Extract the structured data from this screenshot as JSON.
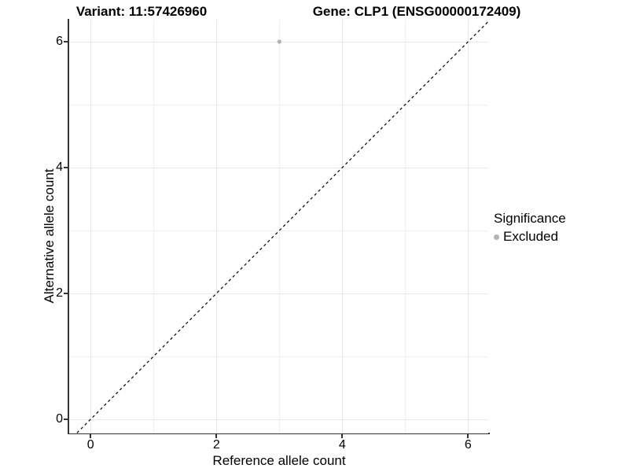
{
  "titles": {
    "variant": "Variant: 11:57426960",
    "gene": "Gene: CLP1 (ENSG00000172409)"
  },
  "chart_data": {
    "type": "scatter",
    "xlabel": "Reference allele count",
    "ylabel": "Alternative allele count",
    "xlim": [
      -0.34,
      6.32
    ],
    "ylim": [
      -0.225,
      6.35
    ],
    "x_ticks": [
      0,
      2,
      4,
      6
    ],
    "y_ticks": [
      0,
      2,
      4,
      6
    ],
    "x_minor_ticks": [
      1,
      3,
      5
    ],
    "y_minor_ticks": [
      1,
      3,
      5
    ],
    "grid": true,
    "points": [
      {
        "x": 3,
        "y": 6,
        "series": "Excluded",
        "color": "#b3b3b3"
      }
    ],
    "reference_line": {
      "slope": 1,
      "intercept": 0,
      "style": "dashed",
      "color": "#000000"
    },
    "legend": {
      "title": "Significance",
      "position": "right",
      "entries": [
        {
          "label": "Excluded",
          "color": "#b3b3b3",
          "marker": "circle"
        }
      ]
    }
  }
}
